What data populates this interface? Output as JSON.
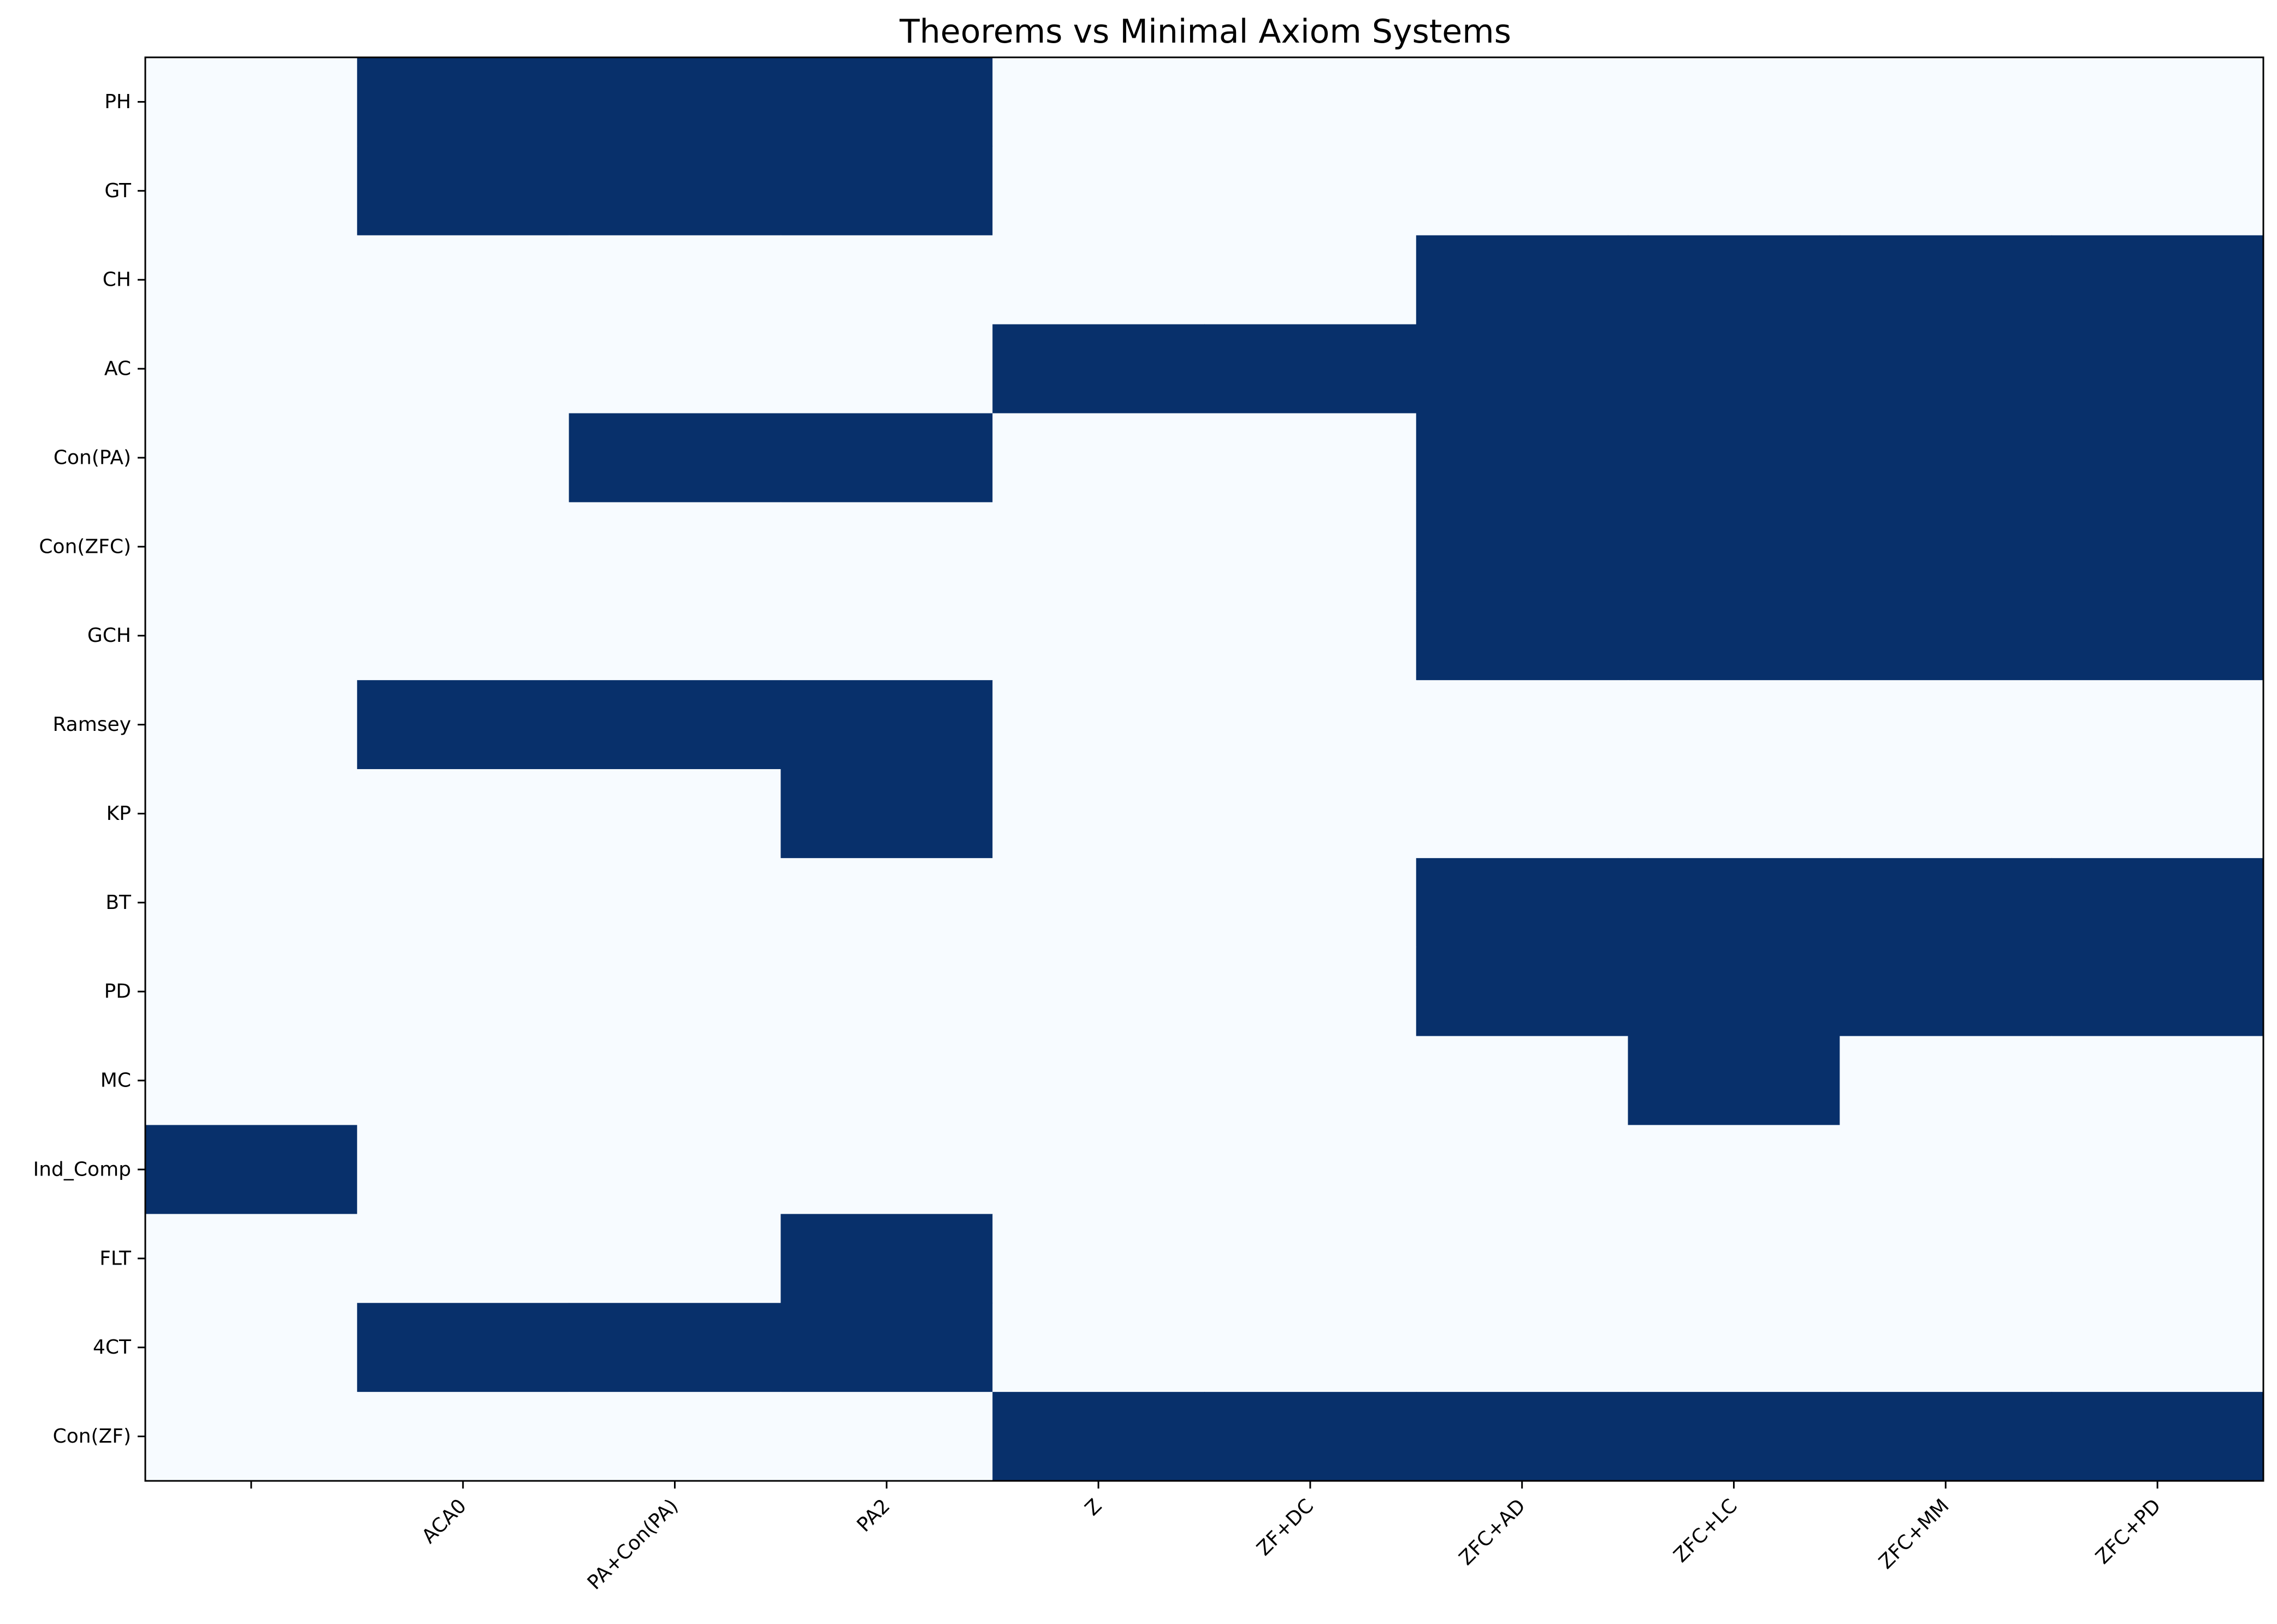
{
  "chart_data": {
    "type": "heatmap",
    "title": "Theorems vs Minimal Axiom Systems",
    "xlabel": "",
    "ylabel": "",
    "x_categories": [
      "",
      "ACA0",
      "PA+Con(PA)",
      "PA2",
      "Z",
      "ZF+DC",
      "ZFC+AD",
      "ZFC+LC",
      "ZFC+MM",
      "ZFC+PD"
    ],
    "y_categories": [
      "PH",
      "GT",
      "CH",
      "AC",
      "Con(PA)",
      "Con(ZFC)",
      "GCH",
      "Ramsey",
      "KP",
      "BT",
      "PD",
      "MC",
      "Ind_Comp",
      "FLT",
      "4CT",
      "Con(ZF)"
    ],
    "values": [
      [
        0,
        1,
        1,
        1,
        0,
        0,
        0,
        0,
        0,
        0
      ],
      [
        0,
        1,
        1,
        1,
        0,
        0,
        0,
        0,
        0,
        0
      ],
      [
        0,
        0,
        0,
        0,
        0,
        0,
        1,
        1,
        1,
        1
      ],
      [
        0,
        0,
        0,
        0,
        1,
        1,
        1,
        1,
        1,
        1
      ],
      [
        0,
        0,
        1,
        1,
        0,
        0,
        1,
        1,
        1,
        1
      ],
      [
        0,
        0,
        0,
        0,
        0,
        0,
        1,
        1,
        1,
        1
      ],
      [
        0,
        0,
        0,
        0,
        0,
        0,
        1,
        1,
        1,
        1
      ],
      [
        0,
        1,
        1,
        1,
        0,
        0,
        0,
        0,
        0,
        0
      ],
      [
        0,
        0,
        0,
        1,
        0,
        0,
        0,
        0,
        0,
        0
      ],
      [
        0,
        0,
        0,
        0,
        0,
        0,
        1,
        1,
        1,
        1
      ],
      [
        0,
        0,
        0,
        0,
        0,
        0,
        1,
        1,
        1,
        1
      ],
      [
        0,
        0,
        0,
        0,
        0,
        0,
        0,
        1,
        0,
        0
      ],
      [
        1,
        0,
        0,
        0,
        0,
        0,
        0,
        0,
        0,
        0
      ],
      [
        0,
        0,
        0,
        1,
        0,
        0,
        0,
        0,
        0,
        0
      ],
      [
        0,
        1,
        1,
        1,
        0,
        0,
        0,
        0,
        0,
        0
      ],
      [
        0,
        0,
        0,
        0,
        1,
        1,
        1,
        1,
        1,
        1
      ]
    ],
    "colormap": "Blues",
    "colors": {
      "low": "#f7fbff",
      "high": "#08306b"
    },
    "legend": "none",
    "grid": false
  }
}
